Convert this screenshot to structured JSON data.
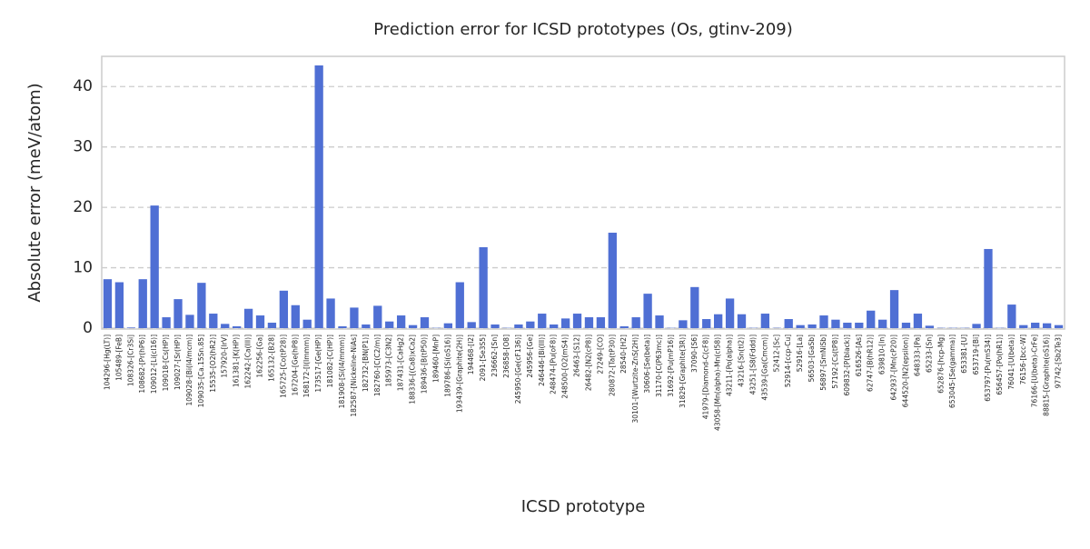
{
  "chart_data": {
    "type": "bar",
    "title": "Prediction error for ICSD prototypes (Os, gtinv-209)",
    "xlabel": "ICSD prototype",
    "ylabel": "Absolute error (meV/atom)",
    "categories": [
      "104296-[Hg(LT)]",
      "105489-[FeB]",
      "108326-[Cr3Si]",
      "108682-[Pr(hP6)]",
      "109012-[Li(cI16)]",
      "109018-[Cs(HP)]",
      "109027-[Sr(HP)]",
      "109028-[Bi(I4/mcm)]",
      "109035-[Ca.15Sn.85]",
      "15535-[O2(hR2)]",
      "157920-[IrV]",
      "161381-[K(HP)]",
      "162242-[Ca(III)]",
      "162256-[Ga]",
      "165132-[B28]",
      "165725-[Co(tP28)]",
      "167204-[Ge(hP8)]",
      "168172-[I(Immm)]",
      "173517-[Ge(HP)]",
      "181082-[C(HP)]",
      "181908-[Si(I4/mmm)]",
      "182587-[Nickeline-NiAs]",
      "182732-[BN(P1)]",
      "182760-[C(C2/m)]",
      "185973-[C3N2]",
      "187431-[CaHg2]",
      "188336-[(Ca8)xCa2]",
      "189436-[B(tP50)]",
      "189460-[MnP]",
      "189786-[Si(oS16)]",
      "193439-[Graphite(2H)]",
      "194468-[I2]",
      "2091-[Se3S5]",
      "236662-[Sn]",
      "236858-[O8]",
      "245950-[Ge(cF136)]",
      "245956-[Ge]",
      "246446-[Bi(III)]",
      "248474-[Pu(oF8)]",
      "248500-[O2(mS4)]",
      "26463-[S12]",
      "26482-[N2(cP8)]",
      "27249-[CO]",
      "280872-[Ta(tP30)]",
      "28540-[H2]",
      "30101-[Wurtzite-ZnS(2H)]",
      "30606-[Se(beta)]",
      "31170-[C(P63mc)]",
      "31692-[Pu(mP16)]",
      "31829-[Graphite(3R)]",
      "37090-[S6]",
      "41979-[Diamond-C(cF8)]",
      "43058-[Mn(alpha)-Mn(cI58)]",
      "43211-[Po(alpha)]",
      "43216-[Sn(tI2)]",
      "43251-[S8(Fddd)]",
      "43539-[Ga(Cmcm)]",
      "52412-[Sc]",
      "52914-[ccp-Cu]",
      "52916-[La]",
      "56503-[GaSb]",
      "56897-[SmNiSb]",
      "57192-[Cs(tP8)]",
      "609832-[P(black)]",
      "616526-[As]",
      "62747-[B(hR12)]",
      "639810-[In]",
      "642937-[Mn(cP20)]",
      "644520-[N2(epsilon)]",
      "648333-[Pa]",
      "65233-[Sn]",
      "652876-[hcp-Mg]",
      "653045-[Se(gamma)]",
      "653381-[U]",
      "653719-[Bi]",
      "653797-[Pu(mS34)]",
      "656457-[Po(hR1)]",
      "76041-[U(beta)]",
      "76156-[bcc-W]",
      "76166-[U(beta)-CrFe]",
      "88815-[Graphite(oS16)]",
      "97742-[Sb2Te3]"
    ],
    "values": [
      8.1,
      7.6,
      0.1,
      8.1,
      20.3,
      1.8,
      4.8,
      2.2,
      7.5,
      2.4,
      0.7,
      0.3,
      3.2,
      2.1,
      0.9,
      6.2,
      3.8,
      1.4,
      43.5,
      4.9,
      0.3,
      3.4,
      0.6,
      3.7,
      1.1,
      2.1,
      0.5,
      1.8,
      0.05,
      0.8,
      7.6,
      1.0,
      13.4,
      0.6,
      0.05,
      0.6,
      1.1,
      2.4,
      0.6,
      1.6,
      2.4,
      1.8,
      1.8,
      15.8,
      0.3,
      1.8,
      5.7,
      2.1,
      0.05,
      1.3,
      6.8,
      1.5,
      2.3,
      4.9,
      2.3,
      0.05,
      2.4,
      0.05,
      1.5,
      0.5,
      0.6,
      2.1,
      1.4,
      0.9,
      0.9,
      2.9,
      1.4,
      6.3,
      0.9,
      2.4,
      0.4,
      0.05,
      0.05,
      0.05,
      0.7,
      13.1,
      0.05,
      3.9,
      0.5,
      0.9,
      0.8,
      0.5
    ],
    "color": "#4f6fd4",
    "ylim": [
      0,
      45
    ],
    "yticks": [
      0,
      10,
      20,
      30,
      40
    ],
    "grid": true
  }
}
